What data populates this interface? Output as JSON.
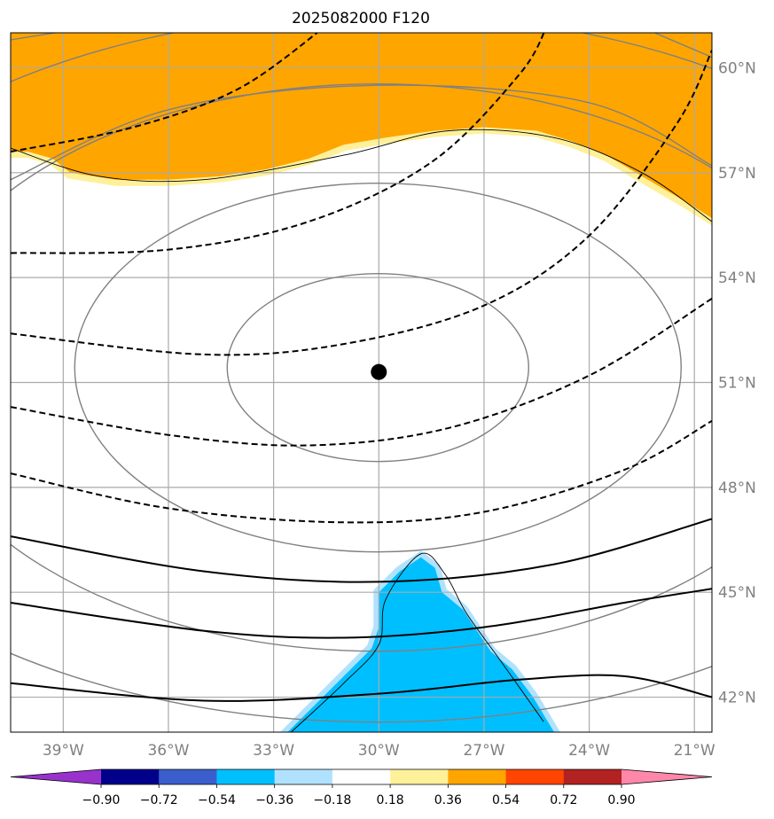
{
  "chart_data": {
    "type": "map",
    "title": "2025082000 F120",
    "lon_range": [
      -40.5,
      -20.5
    ],
    "lat_range": [
      41.0,
      61.0
    ],
    "lon_ticks": [
      {
        "value": -39,
        "label": "39°W"
      },
      {
        "value": -36,
        "label": "36°W"
      },
      {
        "value": -33,
        "label": "33°W"
      },
      {
        "value": -30,
        "label": "30°W"
      },
      {
        "value": -27,
        "label": "27°W"
      },
      {
        "value": -24,
        "label": "24°W"
      },
      {
        "value": -21,
        "label": "21°W"
      }
    ],
    "lat_ticks": [
      {
        "value": 42,
        "label": "42°N"
      },
      {
        "value": 45,
        "label": "45°N"
      },
      {
        "value": 48,
        "label": "48°N"
      },
      {
        "value": 51,
        "label": "51°N"
      },
      {
        "value": 54,
        "label": "54°N"
      },
      {
        "value": 57,
        "label": "57°N"
      },
      {
        "value": 60,
        "label": "60°N"
      }
    ],
    "center_marker": {
      "lon": -30.0,
      "lat": 51.3
    },
    "colorbar": {
      "bounds": [
        -0.9,
        -0.72,
        -0.54,
        -0.36,
        -0.18,
        0.18,
        0.36,
        0.54,
        0.72,
        0.9
      ],
      "labels": [
        "−0.90",
        "−0.72",
        "−0.54",
        "−0.36",
        "−0.18",
        "0.18",
        "0.36",
        "0.54",
        "0.72",
        "0.90"
      ],
      "colors": [
        "#9932cc",
        "#00008b",
        "#3a5fcd",
        "#00bfff",
        "#b0e2ff",
        "#ffffff",
        "#fff09a",
        "#ffa500",
        "#ff4500",
        "#b22222",
        "#ff88aa"
      ],
      "extend": "both"
    },
    "positive_region": {
      "level": "0.36 to 0.54",
      "boundary": [
        [
          -40.5,
          57.6
        ],
        [
          -40.0,
          57.6
        ],
        [
          -39.3,
          57.4
        ],
        [
          -38.8,
          57.0
        ],
        [
          -37.5,
          56.8
        ],
        [
          -36.0,
          56.8
        ],
        [
          -34.5,
          56.9
        ],
        [
          -33.2,
          57.1
        ],
        [
          -32.0,
          57.4
        ],
        [
          -31.0,
          57.8
        ],
        [
          -29.8,
          58.0
        ],
        [
          -28.4,
          58.2
        ],
        [
          -27.0,
          58.3
        ],
        [
          -25.5,
          58.2
        ],
        [
          -24.5,
          57.9
        ],
        [
          -23.5,
          57.5
        ],
        [
          -22.5,
          56.9
        ],
        [
          -21.3,
          56.2
        ],
        [
          -20.5,
          55.7
        ],
        [
          -20.5,
          61.0
        ],
        [
          -40.5,
          61.0
        ]
      ]
    },
    "negative_region": {
      "level": "-0.54 to -0.36",
      "boundary": [
        [
          -32.6,
          41.0
        ],
        [
          -31.8,
          41.8
        ],
        [
          -30.8,
          42.8
        ],
        [
          -30.2,
          43.4
        ],
        [
          -30.0,
          44.0
        ],
        [
          -30.0,
          45.0
        ],
        [
          -29.4,
          45.6
        ],
        [
          -28.8,
          46.0
        ],
        [
          -28.4,
          45.7
        ],
        [
          -28.2,
          45.0
        ],
        [
          -27.6,
          44.5
        ],
        [
          -27.2,
          43.9
        ],
        [
          -26.8,
          43.3
        ],
        [
          -26.2,
          42.8
        ],
        [
          -25.6,
          42.0
        ],
        [
          -25.0,
          41.0
        ]
      ]
    }
  }
}
